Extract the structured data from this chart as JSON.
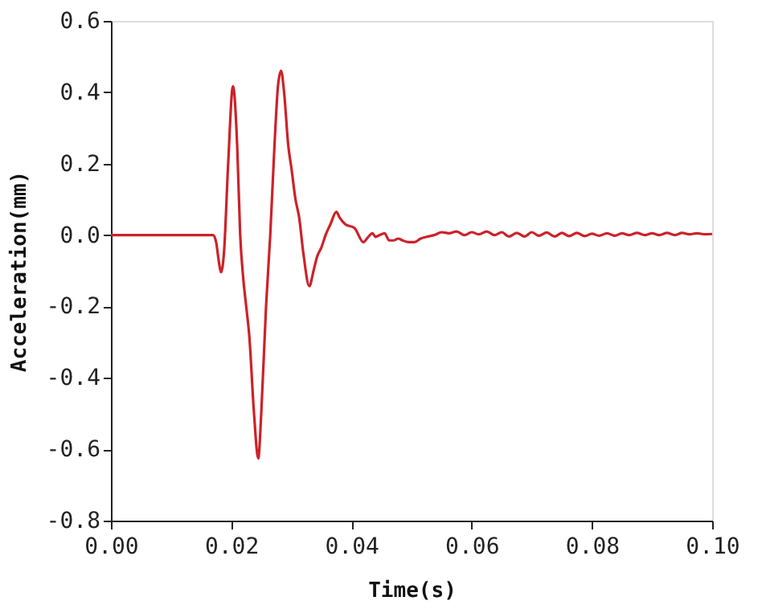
{
  "chart_data": {
    "type": "line",
    "xlabel": "Time(s)",
    "ylabel": "Acceleration(mm)",
    "x": [
      0,
      0.017,
      0.0175,
      0.018,
      0.0183,
      0.0188,
      0.0195,
      0.0203,
      0.021,
      0.0215,
      0.022,
      0.0225,
      0.023,
      0.0238,
      0.0245,
      0.025,
      0.0258,
      0.0265,
      0.0272,
      0.0278,
      0.0283,
      0.0288,
      0.0295,
      0.03,
      0.0307,
      0.0313,
      0.032,
      0.033,
      0.0337,
      0.0343,
      0.035,
      0.0357,
      0.0365,
      0.0375,
      0.038,
      0.039,
      0.0405,
      0.042,
      0.0428,
      0.0435,
      0.044,
      0.0447,
      0.0455,
      0.0463,
      0.047,
      0.0478,
      0.0485,
      0.0495,
      0.0505,
      0.0515,
      0.0525,
      0.0538,
      0.055,
      0.0562,
      0.0575,
      0.0588,
      0.06,
      0.0612,
      0.0625,
      0.0638,
      0.065,
      0.0662,
      0.0675,
      0.0688,
      0.07,
      0.0712,
      0.0725,
      0.0738,
      0.075,
      0.0762,
      0.0775,
      0.0788,
      0.08,
      0.0812,
      0.0825,
      0.0838,
      0.085,
      0.0862,
      0.0875,
      0.0888,
      0.09,
      0.0912,
      0.0925,
      0.0938,
      0.095,
      0.0962,
      0.0975,
      0.0988,
      0.1
    ],
    "series": [
      {
        "color": "#cc2229",
        "values": [
          0,
          0,
          -0.02,
          -0.08,
          -0.104,
          -0.05,
          0.2,
          0.417,
          0.25,
          0.0,
          -0.12,
          -0.2,
          -0.28,
          -0.5,
          -0.626,
          -0.5,
          -0.2,
          0.0,
          0.25,
          0.42,
          0.46,
          0.4,
          0.25,
          0.19,
          0.1,
          0.05,
          -0.05,
          -0.143,
          -0.1,
          -0.06,
          -0.035,
          0.0,
          0.03,
          0.065,
          0.05,
          0.03,
          0.02,
          -0.02,
          -0.005,
          0.005,
          -0.005,
          0.0,
          0.005,
          -0.015,
          -0.015,
          -0.01,
          -0.015,
          -0.02,
          -0.02,
          -0.01,
          -0.005,
          0.0,
          0.008,
          0.005,
          0.01,
          0.0,
          0.008,
          0.002,
          0.01,
          0.0,
          0.008,
          -0.004,
          0.006,
          -0.004,
          0.008,
          -0.002,
          0.007,
          -0.004,
          0.006,
          -0.003,
          0.006,
          -0.003,
          0.004,
          -0.002,
          0.005,
          -0.002,
          0.005,
          0.0,
          0.006,
          0.0,
          0.005,
          0.0,
          0.006,
          0.0,
          0.006,
          0.002,
          0.005,
          0.002,
          0.003
        ]
      }
    ],
    "xlim": [
      0,
      0.1
    ],
    "xticks": [
      {
        "value": 0,
        "label": "0.00"
      },
      {
        "value": 0.02,
        "label": "0.02"
      },
      {
        "value": 0.04,
        "label": "0.04"
      },
      {
        "value": 0.06,
        "label": "0.06"
      },
      {
        "value": 0.08,
        "label": "0.08"
      },
      {
        "value": 0.1,
        "label": "0.10"
      }
    ],
    "ylim": [
      -0.8,
      0.6
    ],
    "yticks": [
      {
        "value": -0.8,
        "label": "-0.8"
      },
      {
        "value": -0.6,
        "label": "-0.6"
      },
      {
        "value": -0.4,
        "label": "-0.4"
      },
      {
        "value": -0.2,
        "label": "-0.2"
      },
      {
        "value": 0,
        "label": "0.0"
      },
      {
        "value": 0.2,
        "label": "0.2"
      },
      {
        "value": 0.4,
        "label": "0.4"
      },
      {
        "value": 0.6,
        "label": "0.6"
      }
    ],
    "grid": false,
    "marker": "none",
    "line_style": "solid"
  }
}
